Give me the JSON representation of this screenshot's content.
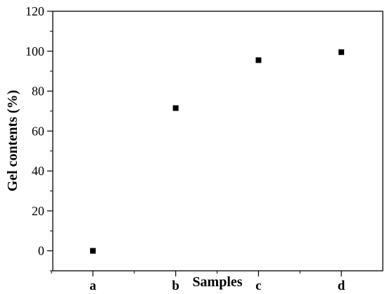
{
  "chart_data": {
    "type": "scatter",
    "title": "",
    "xlabel": "Samples",
    "ylabel": "Gel contents (%)",
    "categories": [
      "a",
      "b",
      "c",
      "d"
    ],
    "values": [
      0,
      71.5,
      95.5,
      99.5
    ],
    "ylim": [
      -10,
      120
    ],
    "yticks": [
      0,
      20,
      40,
      60,
      80,
      100,
      120
    ],
    "ytick_labels": [
      "0",
      "20",
      "40",
      "60",
      "80",
      "100",
      "120"
    ],
    "grid": false,
    "legend": "none",
    "marker": "square",
    "marker_color": "#000000"
  }
}
